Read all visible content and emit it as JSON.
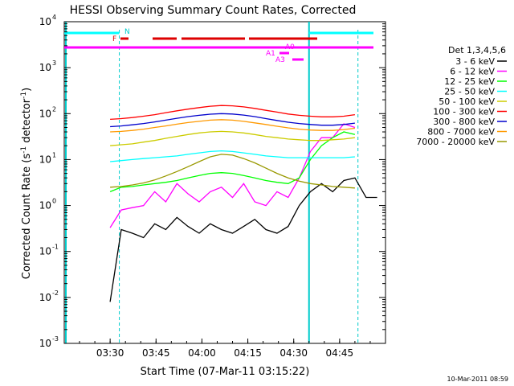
{
  "chart_data": {
    "type": "line",
    "title": "HESSI Observing Summary Count Rates, Corrected",
    "xlabel": "Start Time (07-Mar-11 03:15:22)",
    "ylabel_main": "Corrected Count Rate (s",
    "ylabel_sup1": "-1",
    "ylabel_mid": " detector",
    "ylabel_sup2": "-1",
    "ylabel_end": ")",
    "ylog": true,
    "ylim": [
      0.001,
      10000
    ],
    "xlim": [
      "03:15",
      "05:00"
    ],
    "x_ticks": [
      "03:30",
      "03:45",
      "04:00",
      "04:15",
      "04:30",
      "04:45"
    ],
    "y_ticks": [
      {
        "exp": -3,
        "label": "10",
        "sup": "-3"
      },
      {
        "exp": -2,
        "label": "10",
        "sup": "-2"
      },
      {
        "exp": -1,
        "label": "10",
        "sup": "-1"
      },
      {
        "exp": 0,
        "label": "10",
        "sup": "0"
      },
      {
        "exp": 1,
        "label": "10",
        "sup": "1"
      },
      {
        "exp": 2,
        "label": "10",
        "sup": "2"
      },
      {
        "exp": 3,
        "label": "10",
        "sup": "3"
      },
      {
        "exp": 4,
        "label": "10",
        "sup": "4"
      }
    ],
    "legend_header": "Det 1,3,4,5,6",
    "legend_position": "right",
    "series": [
      {
        "name": "3 - 6 keV",
        "color": "#000000",
        "values": [
          [
            0,
            0.008
          ],
          [
            1,
            0.3
          ],
          [
            2,
            0.25
          ],
          [
            3,
            0.2
          ],
          [
            4,
            0.4
          ],
          [
            5,
            0.3
          ],
          [
            6,
            0.55
          ],
          [
            7,
            0.35
          ],
          [
            8,
            0.25
          ],
          [
            9,
            0.4
          ],
          [
            10,
            0.3
          ],
          [
            11,
            0.25
          ],
          [
            12,
            0.35
          ],
          [
            13,
            0.5
          ],
          [
            14,
            0.3
          ],
          [
            15,
            0.25
          ],
          [
            16,
            0.35
          ],
          [
            17,
            1.0
          ],
          [
            18,
            2.0
          ],
          [
            19,
            3.0
          ],
          [
            20,
            2.0
          ],
          [
            21,
            3.5
          ],
          [
            22,
            4.0
          ],
          [
            23,
            1.5
          ],
          [
            24,
            1.5
          ]
        ]
      },
      {
        "name": "6 - 12 keV",
        "color": "#ff00ff",
        "values": [
          [
            0,
            0.33
          ],
          [
            1,
            0.8
          ],
          [
            2,
            0.9
          ],
          [
            3,
            1.0
          ],
          [
            4,
            2.0
          ],
          [
            5,
            1.2
          ],
          [
            6,
            3.0
          ],
          [
            7,
            1.8
          ],
          [
            8,
            1.2
          ],
          [
            9,
            2.0
          ],
          [
            10,
            2.5
          ],
          [
            11,
            1.5
          ],
          [
            12,
            3.0
          ],
          [
            13,
            1.2
          ],
          [
            14,
            1.0
          ],
          [
            15,
            2.0
          ],
          [
            16,
            1.5
          ],
          [
            17,
            4.0
          ],
          [
            18,
            15.0
          ],
          [
            19,
            30.0
          ],
          [
            20,
            30.0
          ],
          [
            21,
            60.0
          ],
          [
            22,
            50.0
          ]
        ]
      },
      {
        "name": "12 - 25 keV",
        "color": "#00ff00",
        "values": [
          [
            0,
            2.0
          ],
          [
            1,
            2.5
          ],
          [
            2,
            2.6
          ],
          [
            3,
            2.8
          ],
          [
            4,
            3.0
          ],
          [
            5,
            3.2
          ],
          [
            6,
            3.5
          ],
          [
            7,
            4.0
          ],
          [
            8,
            4.5
          ],
          [
            9,
            5.0
          ],
          [
            10,
            5.2
          ],
          [
            11,
            5.0
          ],
          [
            12,
            4.5
          ],
          [
            13,
            4.0
          ],
          [
            14,
            3.5
          ],
          [
            15,
            3.2
          ],
          [
            16,
            3.0
          ],
          [
            17,
            4.0
          ],
          [
            18,
            10.0
          ],
          [
            19,
            20.0
          ],
          [
            20,
            30.0
          ],
          [
            21,
            40.0
          ],
          [
            22,
            35.0
          ]
        ]
      },
      {
        "name": "25 - 50 keV",
        "color": "#00ffff",
        "values": [
          [
            0,
            9.0
          ],
          [
            1,
            9.5
          ],
          [
            2,
            10.0
          ],
          [
            3,
            10.5
          ],
          [
            4,
            11.0
          ],
          [
            5,
            11.5
          ],
          [
            6,
            12.0
          ],
          [
            7,
            13.0
          ],
          [
            8,
            14.0
          ],
          [
            9,
            15.0
          ],
          [
            10,
            15.5
          ],
          [
            11,
            15.0
          ],
          [
            12,
            14.0
          ],
          [
            13,
            13.0
          ],
          [
            14,
            12.0
          ],
          [
            15,
            11.5
          ],
          [
            16,
            11.0
          ],
          [
            17,
            11.0
          ],
          [
            18,
            11.0
          ],
          [
            19,
            11.0
          ],
          [
            20,
            11.0
          ],
          [
            21,
            11.0
          ],
          [
            22,
            11.5
          ]
        ]
      },
      {
        "name": "50 - 100 keV",
        "color": "#cccc00",
        "values": [
          [
            0,
            20.0
          ],
          [
            1,
            21.0
          ],
          [
            2,
            22.0
          ],
          [
            3,
            24.0
          ],
          [
            4,
            26.0
          ],
          [
            5,
            29.0
          ],
          [
            6,
            32.0
          ],
          [
            7,
            35.0
          ],
          [
            8,
            38.0
          ],
          [
            9,
            40.0
          ],
          [
            10,
            41.0
          ],
          [
            11,
            40.0
          ],
          [
            12,
            38.0
          ],
          [
            13,
            35.0
          ],
          [
            14,
            32.0
          ],
          [
            15,
            30.0
          ],
          [
            16,
            28.0
          ],
          [
            17,
            27.0
          ],
          [
            18,
            26.0
          ],
          [
            19,
            26.0
          ],
          [
            20,
            27.0
          ],
          [
            21,
            28.0
          ],
          [
            22,
            30.0
          ]
        ]
      },
      {
        "name": "100 - 300 keV",
        "color": "#ff0000",
        "values": [
          [
            0,
            75.0
          ],
          [
            1,
            78.0
          ],
          [
            2,
            82.0
          ],
          [
            3,
            88.0
          ],
          [
            4,
            95.0
          ],
          [
            5,
            105.0
          ],
          [
            6,
            115.0
          ],
          [
            7,
            125.0
          ],
          [
            8,
            135.0
          ],
          [
            9,
            145.0
          ],
          [
            10,
            150.0
          ],
          [
            11,
            148.0
          ],
          [
            12,
            140.0
          ],
          [
            13,
            130.0
          ],
          [
            14,
            118.0
          ],
          [
            15,
            108.0
          ],
          [
            16,
            98.0
          ],
          [
            17,
            92.0
          ],
          [
            18,
            88.0
          ],
          [
            19,
            85.0
          ],
          [
            20,
            85.0
          ],
          [
            21,
            88.0
          ],
          [
            22,
            95.0
          ]
        ]
      },
      {
        "name": "300 - 800 keV",
        "color": "#0000cc",
        "values": [
          [
            0,
            52.0
          ],
          [
            1,
            54.0
          ],
          [
            2,
            57.0
          ],
          [
            3,
            61.0
          ],
          [
            4,
            66.0
          ],
          [
            5,
            72.0
          ],
          [
            6,
            79.0
          ],
          [
            7,
            86.0
          ],
          [
            8,
            92.0
          ],
          [
            9,
            97.0
          ],
          [
            10,
            100.0
          ],
          [
            11,
            98.0
          ],
          [
            12,
            93.0
          ],
          [
            13,
            86.0
          ],
          [
            14,
            78.0
          ],
          [
            15,
            71.0
          ],
          [
            16,
            65.0
          ],
          [
            17,
            61.0
          ],
          [
            18,
            58.0
          ],
          [
            19,
            56.0
          ],
          [
            20,
            56.0
          ],
          [
            21,
            58.0
          ],
          [
            22,
            62.0
          ]
        ]
      },
      {
        "name": "800 - 7000 keV",
        "color": "#ff9900",
        "values": [
          [
            0,
            40.0
          ],
          [
            1,
            41.0
          ],
          [
            2,
            43.0
          ],
          [
            3,
            46.0
          ],
          [
            4,
            50.0
          ],
          [
            5,
            54.0
          ],
          [
            6,
            59.0
          ],
          [
            7,
            64.0
          ],
          [
            8,
            68.0
          ],
          [
            9,
            72.0
          ],
          [
            10,
            74.0
          ],
          [
            11,
            72.0
          ],
          [
            12,
            68.0
          ],
          [
            13,
            63.0
          ],
          [
            14,
            58.0
          ],
          [
            15,
            53.0
          ],
          [
            16,
            49.0
          ],
          [
            17,
            46.0
          ],
          [
            18,
            44.0
          ],
          [
            19,
            43.0
          ],
          [
            20,
            43.0
          ],
          [
            21,
            45.0
          ],
          [
            22,
            48.0
          ]
        ]
      },
      {
        "name": "7000 - 20000 keV",
        "color": "#999900",
        "values": [
          [
            0,
            2.5
          ],
          [
            1,
            2.6
          ],
          [
            2,
            2.8
          ],
          [
            3,
            3.1
          ],
          [
            4,
            3.6
          ],
          [
            5,
            4.4
          ],
          [
            6,
            5.5
          ],
          [
            7,
            7.0
          ],
          [
            8,
            9.0
          ],
          [
            9,
            11.5
          ],
          [
            10,
            13.0
          ],
          [
            11,
            12.5
          ],
          [
            12,
            10.5
          ],
          [
            13,
            8.5
          ],
          [
            14,
            6.5
          ],
          [
            15,
            5.0
          ],
          [
            16,
            4.0
          ],
          [
            17,
            3.4
          ],
          [
            18,
            3.0
          ],
          [
            19,
            2.8
          ],
          [
            20,
            2.6
          ],
          [
            21,
            2.5
          ],
          [
            22,
            2.4
          ]
        ]
      }
    ],
    "flag_labels": [
      "N",
      "F",
      "A0",
      "A1",
      "A3"
    ],
    "footer_date": "10-Mar-2011 08:59"
  }
}
